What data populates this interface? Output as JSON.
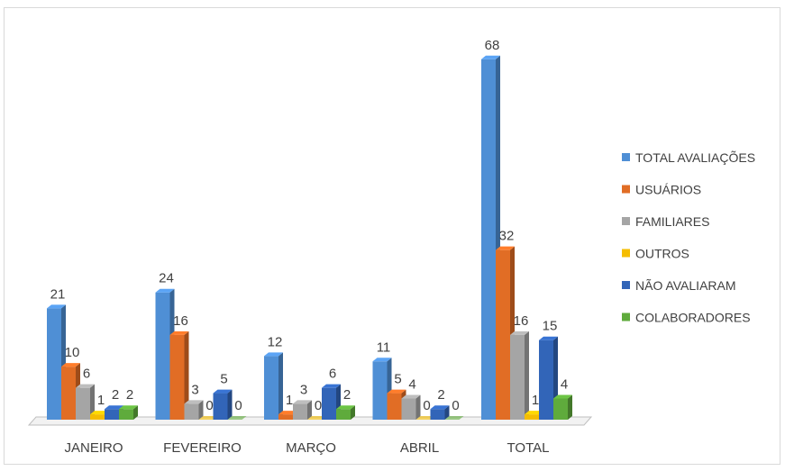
{
  "chart_data": {
    "type": "bar",
    "categories": [
      "JANEIRO",
      "FEVEREIRO",
      "MARÇO",
      "ABRIL",
      "TOTAL"
    ],
    "series": [
      {
        "name": "TOTAL AVALIAÇÕES",
        "color": "#4f8fd5",
        "values": [
          21,
          24,
          12,
          11,
          68
        ]
      },
      {
        "name": "USUÁRIOS",
        "color": "#e16d25",
        "values": [
          10,
          16,
          1,
          5,
          32
        ]
      },
      {
        "name": "FAMILIARES",
        "color": "#a5a5a5",
        "values": [
          6,
          3,
          3,
          4,
          16
        ]
      },
      {
        "name": "OUTROS",
        "color": "#f5bd00",
        "values": [
          1,
          0,
          0,
          0,
          1
        ]
      },
      {
        "name": "NÃO AVALIARAM",
        "color": "#3265b8",
        "values": [
          2,
          5,
          6,
          2,
          15
        ]
      },
      {
        "name": "COLABORADORES",
        "color": "#5fab3c",
        "values": [
          2,
          0,
          2,
          0,
          4
        ]
      }
    ],
    "ylim": [
      0,
      70
    ],
    "grid": false,
    "legend": "right"
  }
}
